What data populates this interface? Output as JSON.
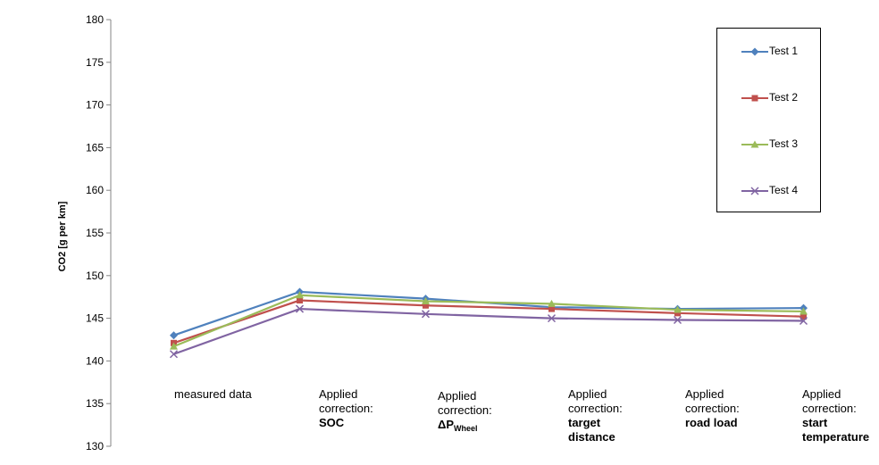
{
  "chart_data": {
    "type": "line",
    "ylabel": "CO2 [g per km]",
    "ylim": [
      130,
      180
    ],
    "yticks": [
      "180",
      "175",
      "170",
      "165",
      "160",
      "155",
      "150",
      "145",
      "140",
      "135",
      "130"
    ],
    "categories": [
      {
        "line1": "measured data",
        "line2": "",
        "line3": "",
        "line4": ""
      },
      {
        "line1": "Applied",
        "line2": "correction:",
        "line3": "SOC",
        "line4": ""
      },
      {
        "line1": "Applied",
        "line2": "correction:",
        "line3": "ΔP",
        "line3_sub": "Wheel",
        "line4": ""
      },
      {
        "line1": "Applied",
        "line2": "correction:",
        "line3": "target",
        "line4": "distance"
      },
      {
        "line1": "Applied",
        "line2": "correction:",
        "line3": "road load",
        "line4": ""
      },
      {
        "line1": "Applied",
        "line2": "correction:",
        "line3": "start",
        "line4": "temperature"
      }
    ],
    "series": [
      {
        "name": "Test 1",
        "color": "#4f81bd",
        "marker": "diamond",
        "values": [
          143.0,
          148.1,
          147.3,
          146.3,
          146.1,
          146.2
        ]
      },
      {
        "name": "Test 2",
        "color": "#c0504d",
        "marker": "square",
        "values": [
          142.1,
          147.1,
          146.5,
          146.1,
          145.6,
          145.2
        ]
      },
      {
        "name": "Test 3",
        "color": "#9bbb59",
        "marker": "triangle",
        "values": [
          141.7,
          147.7,
          147.0,
          146.7,
          146.0,
          145.8
        ]
      },
      {
        "name": "Test 4",
        "color": "#8064a2",
        "marker": "x",
        "values": [
          140.8,
          146.1,
          145.5,
          145.0,
          144.8,
          144.7
        ]
      }
    ],
    "grid": false,
    "legend_position": "top-right"
  }
}
